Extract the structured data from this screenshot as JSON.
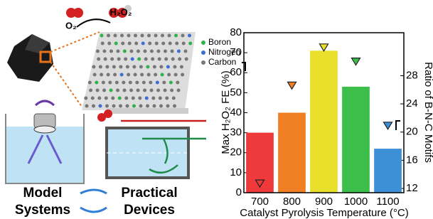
{
  "diagram": {
    "o2": "O₂",
    "h2o2": "H₂O₂",
    "legend": [
      "Boron",
      "Nitrogen",
      "Carbon"
    ],
    "model": [
      "Model",
      "Systems"
    ],
    "practical": [
      "Practical",
      "Devices"
    ]
  },
  "chart_data": {
    "type": "bar",
    "categories": [
      "700",
      "800",
      "900",
      "1000",
      "1100"
    ],
    "series": [
      {
        "values": [
          30,
          40,
          71,
          53,
          22
        ],
        "colors": [
          "#ee3a3a",
          "#f07e22",
          "#e8e02a",
          "#3bbf4a",
          "#3d8fd6"
        ],
        "axis": "y"
      },
      {
        "values": [
          12.7,
          26.6,
          32.0,
          30.0,
          20.9
        ],
        "colors": [
          "#ee3a3a",
          "#f07e22",
          "#e8e02a",
          "#3bbf4a",
          "#3d8fd6"
        ],
        "axis": "y2",
        "marker": "triangle-down"
      }
    ],
    "ylabel": "Max H₂O₂ FE (%)",
    "y2label": "Ratio of B-N-C Motifs",
    "xlabel": "Catalyst Pyrolysis Temperature (°C)",
    "ylim": [
      0,
      80
    ],
    "yticks": [
      0,
      10,
      20,
      30,
      40,
      50,
      60,
      70,
      80
    ],
    "y2lim": [
      11.4,
      34.1
    ],
    "y2ticks": [
      12,
      16,
      20,
      24,
      28
    ]
  }
}
